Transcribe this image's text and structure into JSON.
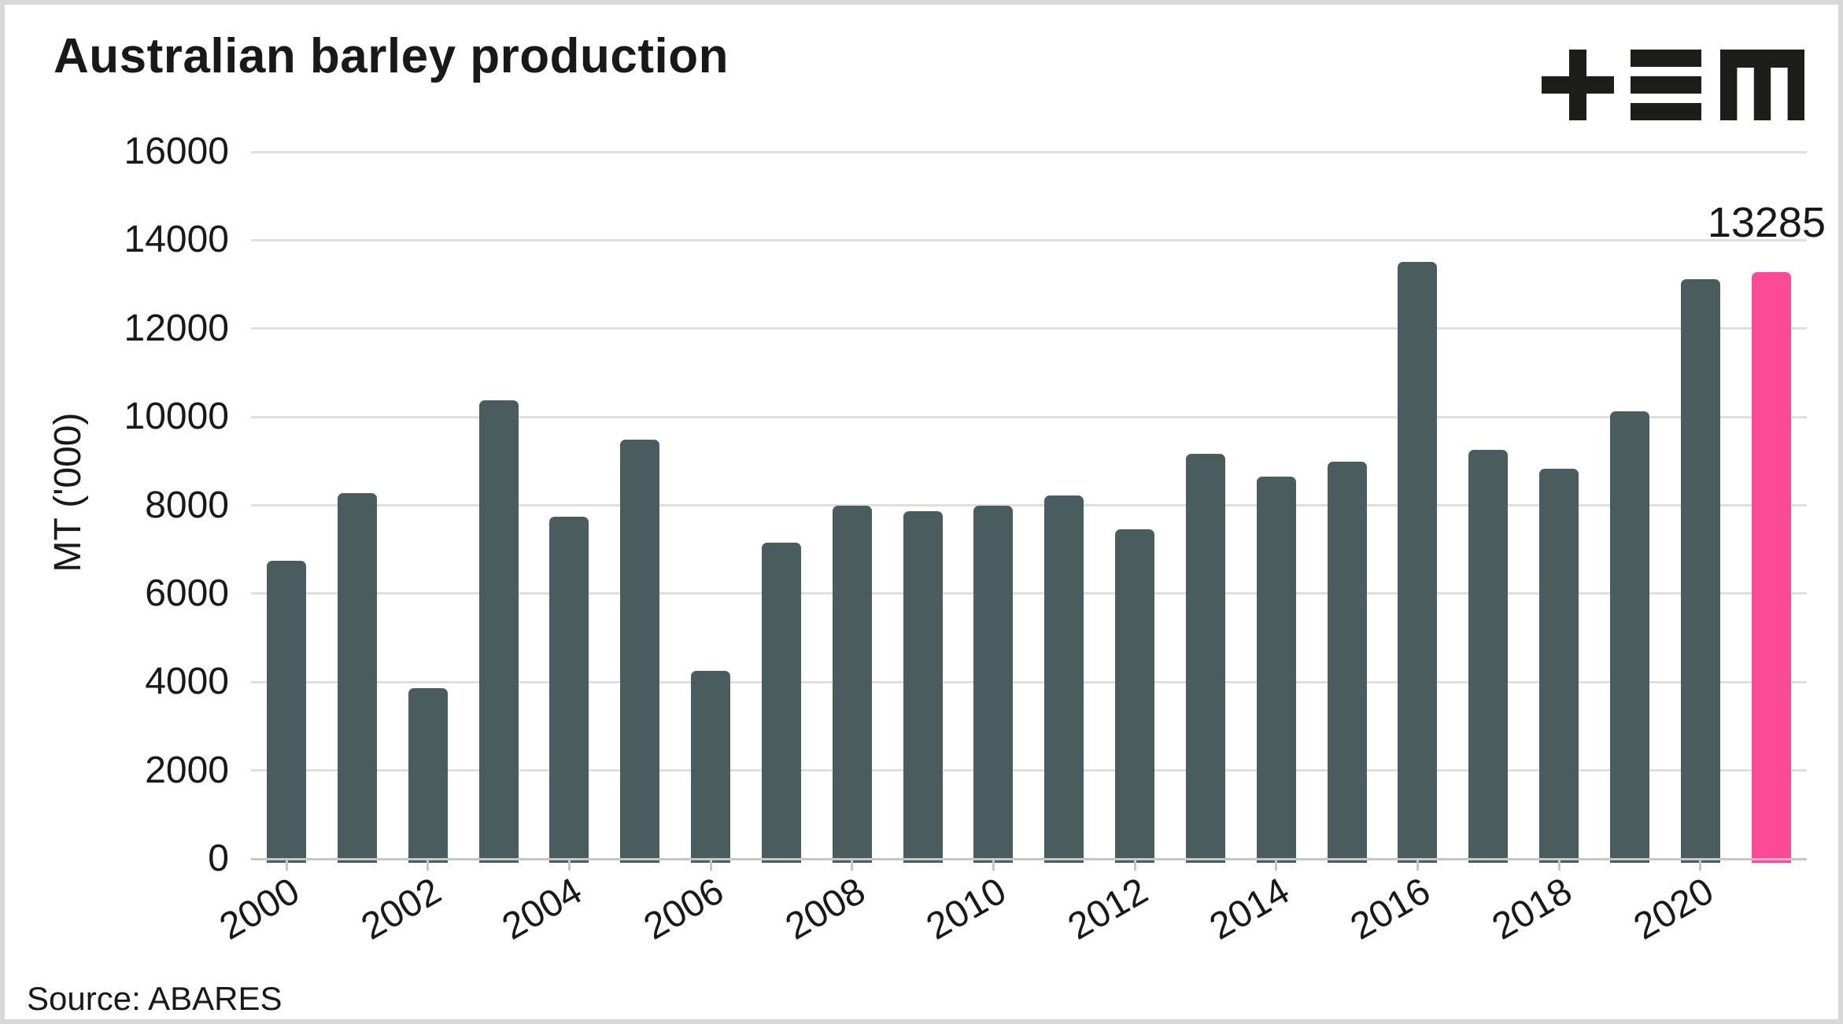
{
  "title": "Australian barley production",
  "source_note": "Source: ABARES",
  "annotation": {
    "value_label": "13285"
  },
  "y_axis": {
    "label": "MT ('000)",
    "tick_labels": [
      "16000",
      "14000",
      "12000",
      "10000",
      "8000",
      "6000",
      "4000",
      "2000",
      "0"
    ]
  },
  "x_axis": {
    "tick_labels": [
      "2000",
      "2002",
      "2004",
      "2006",
      "2008",
      "2010",
      "2012",
      "2014",
      "2016",
      "2018",
      "2020"
    ]
  },
  "colors": {
    "bar": "#4a5c5e",
    "highlight": "#fc4a94",
    "gridline": "#dfdfdf",
    "axis": "#c6c6c6",
    "text": "#191919",
    "logo": "#1d1d1b",
    "border": "#d8d8d8"
  },
  "chart_data": {
    "type": "bar",
    "title": "Australian barley production",
    "xlabel": "",
    "ylabel": "MT ('000)",
    "ylim": [
      0,
      16000
    ],
    "grid": "horizontal",
    "legend": "none",
    "categories": [
      "2000",
      "2001",
      "2002",
      "2003",
      "2004",
      "2005",
      "2006",
      "2007",
      "2008",
      "2009",
      "2010",
      "2011",
      "2012",
      "2013",
      "2014",
      "2015",
      "2016",
      "2017",
      "2018",
      "2019",
      "2020",
      "2021"
    ],
    "values": [
      6743,
      8280,
      3865,
      10382,
      7740,
      9483,
      4257,
      7160,
      7997,
      7865,
      7995,
      8221,
      7466,
      9174,
      8646,
      8993,
      13506,
      9254,
      8819,
      10127,
      13109,
      13285
    ],
    "highlight_index": 21,
    "highlight_label": "13285",
    "source": "Source: ABARES"
  }
}
